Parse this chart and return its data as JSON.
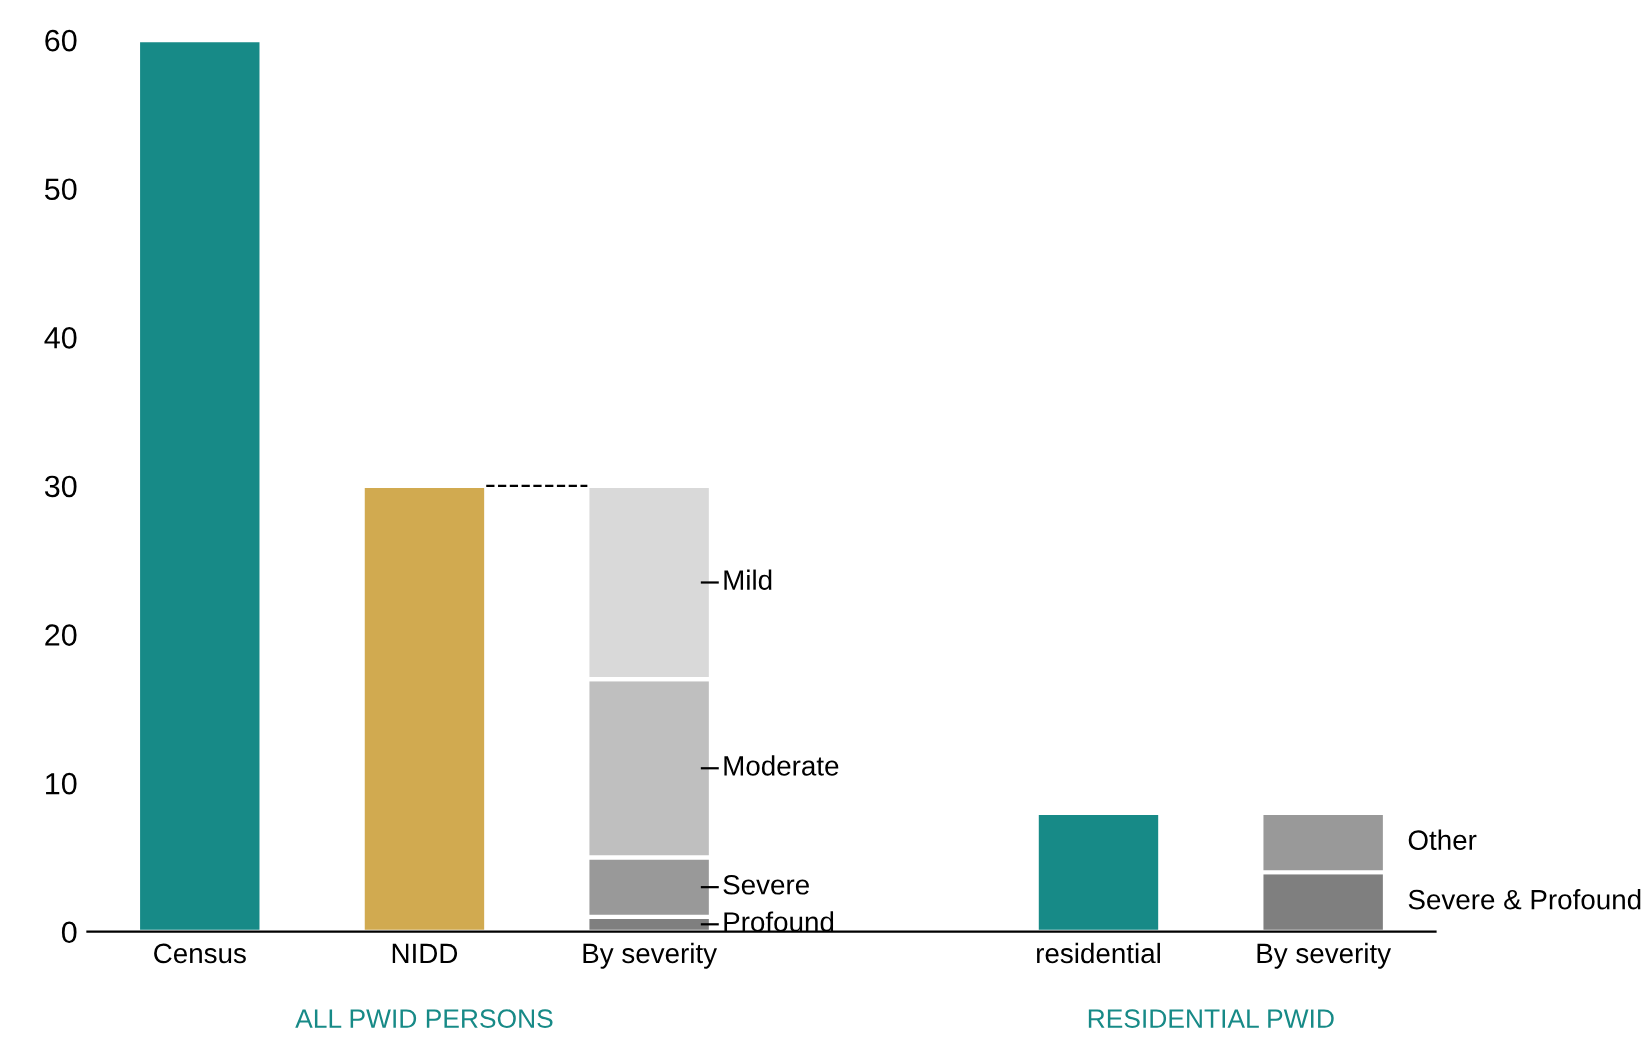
{
  "chart_data": {
    "type": "bar",
    "stacked": true,
    "categories": [
      "Census",
      "NIDD",
      "By severity",
      null,
      "residential",
      "By severity"
    ],
    "series": [
      {
        "colors": [
          "#178a87",
          "#d1aa50",
          null,
          null,
          "#178a87",
          null
        ],
        "values": [
          60,
          30,
          null,
          null,
          8,
          null
        ]
      },
      {
        "name": "Profound",
        "color": "#7f7f7f",
        "values": [
          null,
          null,
          1,
          null,
          null,
          null
        ]
      },
      {
        "name": "Severe",
        "color": "#999999",
        "values": [
          null,
          null,
          4,
          null,
          null,
          null
        ]
      },
      {
        "name": "Moderate",
        "color": "#bfbfbf",
        "values": [
          null,
          null,
          12,
          null,
          null,
          null
        ]
      },
      {
        "name": "Mild",
        "color": "#d9d9d9",
        "values": [
          null,
          null,
          13,
          null,
          null,
          null
        ]
      },
      {
        "name": "Severe & Profound",
        "color": "#7f7f7f",
        "values": [
          null,
          null,
          null,
          null,
          null,
          4
        ]
      },
      {
        "name": "Other",
        "color": "#999999",
        "values": [
          null,
          null,
          null,
          null,
          null,
          4
        ]
      }
    ],
    "ylim": [
      0,
      60
    ],
    "yticks": [
      0,
      10,
      20,
      30,
      40,
      50,
      60
    ],
    "annotations": [
      "ALL PWID PERSONS",
      "RESIDENTIAL PWID"
    ],
    "grid": false,
    "legend": false
  }
}
